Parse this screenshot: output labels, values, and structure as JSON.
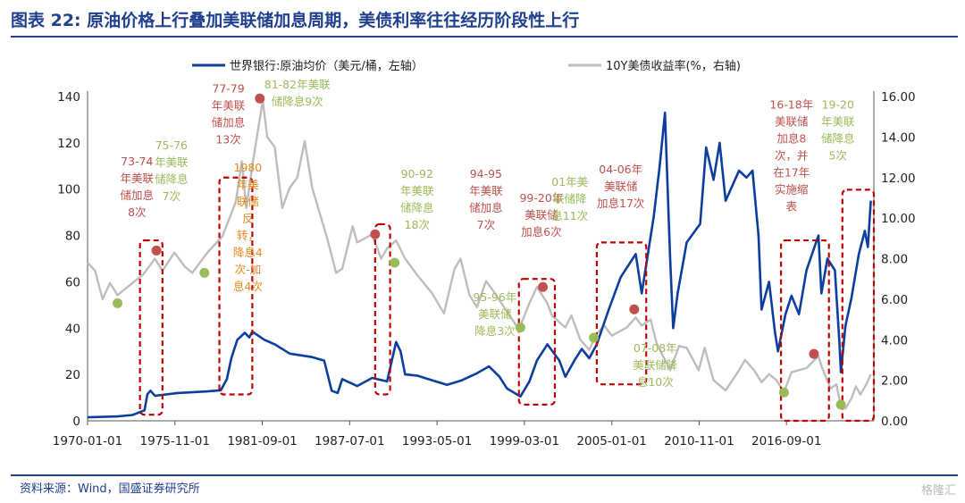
{
  "title": "图表 22: 原油价格上行叠加美联储加息周期，美债利率往往经历阶段性上行",
  "source": "资料来源：Wind，国盛证券研究所",
  "watermark": "格隆汇",
  "colors": {
    "oil": "#0b3e9e",
    "yield": "#bdbdbd",
    "hike": "#c0504d",
    "cut": "#9bbb59",
    "orange": "#e58a1e",
    "box": "#c00000",
    "title": "#1f3f8f"
  },
  "chart_data": {
    "type": "line",
    "title": "图表 22: 原油价格上行叠加美联储加息周期，美债利率往往经历阶段性上行",
    "x_ticks": [
      "1970-01-01",
      "1975-11-01",
      "1981-09-01",
      "1987-07-01",
      "1993-05-01",
      "1999-03-01",
      "2005-01-01",
      "2010-11-01",
      "2016-09-01"
    ],
    "x_range": [
      1970.0,
      2022.5
    ],
    "y_left": {
      "ticks": [
        "0",
        "20",
        "40",
        "60",
        "80",
        "100",
        "120",
        "140"
      ],
      "range": [
        0,
        140
      ]
    },
    "y_right": {
      "ticks": [
        "0.00",
        "2.00",
        "4.00",
        "6.00",
        "8.00",
        "10.00",
        "12.00",
        "14.00",
        "16.00"
      ],
      "range": [
        0,
        16
      ]
    },
    "legend_position": "top",
    "series": [
      {
        "name": "世界银行:原油均价（美元/桶，左轴）",
        "axis": "left",
        "color": "#0b3e9e",
        "points": [
          [
            1970.0,
            1.5
          ],
          [
            1972.0,
            1.9
          ],
          [
            1973.0,
            2.5
          ],
          [
            1973.8,
            4.5
          ],
          [
            1974.0,
            11.5
          ],
          [
            1974.2,
            13.0
          ],
          [
            1974.5,
            10.8
          ],
          [
            1976.0,
            12.0
          ],
          [
            1978.0,
            12.7
          ],
          [
            1978.9,
            13.2
          ],
          [
            1979.3,
            18.0
          ],
          [
            1979.6,
            27.0
          ],
          [
            1980.0,
            35.0
          ],
          [
            1980.5,
            38.0
          ],
          [
            1980.8,
            36.0
          ],
          [
            1981.0,
            38.5
          ],
          [
            1981.8,
            35.0
          ],
          [
            1982.5,
            33.0
          ],
          [
            1983.5,
            29.0
          ],
          [
            1985.0,
            27.5
          ],
          [
            1985.8,
            26.0
          ],
          [
            1986.3,
            13.0
          ],
          [
            1986.7,
            12.0
          ],
          [
            1987.0,
            18.0
          ],
          [
            1988.0,
            15.0
          ],
          [
            1989.0,
            18.5
          ],
          [
            1990.0,
            17.0
          ],
          [
            1990.6,
            34.0
          ],
          [
            1990.9,
            30.0
          ],
          [
            1991.2,
            20.0
          ],
          [
            1992.0,
            19.5
          ],
          [
            1993.0,
            17.5
          ],
          [
            1994.0,
            15.5
          ],
          [
            1995.0,
            17.5
          ],
          [
            1996.0,
            20.5
          ],
          [
            1996.8,
            23.5
          ],
          [
            1997.5,
            19.0
          ],
          [
            1998.0,
            14.0
          ],
          [
            1998.9,
            10.5
          ],
          [
            1999.5,
            17.0
          ],
          [
            2000.0,
            26.0
          ],
          [
            2000.7,
            33.0
          ],
          [
            2001.5,
            26.0
          ],
          [
            2001.9,
            19.0
          ],
          [
            2002.5,
            26.0
          ],
          [
            2003.0,
            31.0
          ],
          [
            2003.5,
            27.0
          ],
          [
            2004.0,
            33.0
          ],
          [
            2004.8,
            48.0
          ],
          [
            2005.6,
            62.0
          ],
          [
            2006.6,
            72.0
          ],
          [
            2007.0,
            55.0
          ],
          [
            2007.8,
            88.0
          ],
          [
            2008.2,
            110.0
          ],
          [
            2008.55,
            133.0
          ],
          [
            2008.9,
            70.0
          ],
          [
            2009.1,
            40.0
          ],
          [
            2009.4,
            55.0
          ],
          [
            2010.0,
            77.0
          ],
          [
            2010.9,
            85.0
          ],
          [
            2011.3,
            118.0
          ],
          [
            2011.8,
            104.0
          ],
          [
            2012.2,
            120.0
          ],
          [
            2012.6,
            95.0
          ],
          [
            2013.5,
            108.0
          ],
          [
            2014.0,
            105.0
          ],
          [
            2014.4,
            108.0
          ],
          [
            2014.8,
            80.0
          ],
          [
            2015.0,
            48.0
          ],
          [
            2015.5,
            60.0
          ],
          [
            2015.9,
            38.0
          ],
          [
            2016.1,
            30.0
          ],
          [
            2016.6,
            46.0
          ],
          [
            2017.0,
            54.0
          ],
          [
            2017.5,
            46.0
          ],
          [
            2018.0,
            65.0
          ],
          [
            2018.8,
            80.0
          ],
          [
            2019.0,
            55.0
          ],
          [
            2019.4,
            70.0
          ],
          [
            2019.9,
            65.0
          ],
          [
            2020.2,
            34.0
          ],
          [
            2020.3,
            21.0
          ],
          [
            2020.6,
            41.0
          ],
          [
            2021.0,
            53.0
          ],
          [
            2021.5,
            72.0
          ],
          [
            2021.9,
            82.0
          ],
          [
            2022.1,
            75.0
          ],
          [
            2022.3,
            95.0
          ]
        ]
      },
      {
        "name": "10Y美债收益率(%，右轴)",
        "axis": "right",
        "color": "#bdbdbd",
        "points": [
          [
            1970.0,
            7.8
          ],
          [
            1970.5,
            7.4
          ],
          [
            1971.0,
            6.0
          ],
          [
            1971.5,
            6.8
          ],
          [
            1972.0,
            6.2
          ],
          [
            1973.0,
            6.8
          ],
          [
            1973.7,
            7.2
          ],
          [
            1974.5,
            8.0
          ],
          [
            1975.0,
            7.4
          ],
          [
            1975.8,
            8.3
          ],
          [
            1976.5,
            7.6
          ],
          [
            1977.0,
            7.3
          ],
          [
            1978.0,
            8.3
          ],
          [
            1979.0,
            9.1
          ],
          [
            1979.9,
            10.8
          ],
          [
            1980.3,
            12.8
          ],
          [
            1980.6,
            10.5
          ],
          [
            1981.0,
            12.6
          ],
          [
            1981.7,
            15.8
          ],
          [
            1982.0,
            14.0
          ],
          [
            1982.5,
            13.5
          ],
          [
            1983.0,
            10.5
          ],
          [
            1983.5,
            11.5
          ],
          [
            1984.0,
            12.0
          ],
          [
            1984.5,
            13.8
          ],
          [
            1985.0,
            11.5
          ],
          [
            1986.0,
            9.0
          ],
          [
            1986.6,
            7.3
          ],
          [
            1987.0,
            7.5
          ],
          [
            1987.7,
            9.6
          ],
          [
            1988.0,
            8.8
          ],
          [
            1989.0,
            9.2
          ],
          [
            1989.6,
            8.0
          ],
          [
            1990.0,
            8.5
          ],
          [
            1990.6,
            8.9
          ],
          [
            1991.2,
            8.0
          ],
          [
            1992.0,
            7.2
          ],
          [
            1993.0,
            6.3
          ],
          [
            1993.8,
            5.3
          ],
          [
            1994.5,
            7.5
          ],
          [
            1994.9,
            8.0
          ],
          [
            1995.5,
            6.2
          ],
          [
            1996.0,
            5.6
          ],
          [
            1996.6,
            6.9
          ],
          [
            1997.0,
            6.5
          ],
          [
            1998.0,
            5.4
          ],
          [
            1998.8,
            4.5
          ],
          [
            1999.5,
            5.8
          ],
          [
            2000.0,
            6.6
          ],
          [
            2000.7,
            5.8
          ],
          [
            2001.0,
            5.2
          ],
          [
            2001.9,
            4.6
          ],
          [
            2002.3,
            5.2
          ],
          [
            2002.9,
            4.0
          ],
          [
            2003.5,
            3.5
          ],
          [
            2004.0,
            4.3
          ],
          [
            2004.5,
            4.7
          ],
          [
            2005.0,
            4.2
          ],
          [
            2006.0,
            4.6
          ],
          [
            2006.6,
            5.1
          ],
          [
            2007.0,
            4.7
          ],
          [
            2007.6,
            5.0
          ],
          [
            2008.0,
            3.8
          ],
          [
            2008.9,
            2.5
          ],
          [
            2009.5,
            3.7
          ],
          [
            2010.0,
            3.6
          ],
          [
            2010.8,
            2.5
          ],
          [
            2011.2,
            3.6
          ],
          [
            2011.8,
            2.0
          ],
          [
            2012.6,
            1.5
          ],
          [
            2013.5,
            2.5
          ],
          [
            2013.9,
            3.0
          ],
          [
            2014.5,
            2.5
          ],
          [
            2015.0,
            1.9
          ],
          [
            2015.5,
            2.3
          ],
          [
            2016.0,
            2.0
          ],
          [
            2016.5,
            1.4
          ],
          [
            2017.0,
            2.4
          ],
          [
            2018.0,
            2.6
          ],
          [
            2018.8,
            3.2
          ],
          [
            2019.0,
            2.7
          ],
          [
            2019.6,
            1.6
          ],
          [
            2020.0,
            1.8
          ],
          [
            2020.3,
            0.7
          ],
          [
            2020.6,
            0.6
          ],
          [
            2021.0,
            1.1
          ],
          [
            2021.3,
            1.7
          ],
          [
            2021.6,
            1.3
          ],
          [
            2022.0,
            1.8
          ],
          [
            2022.3,
            2.3
          ]
        ]
      }
    ],
    "markers": [
      {
        "type": "hike",
        "x": 1974.6,
        "y_right": 8.4
      },
      {
        "type": "hike",
        "x": 1981.5,
        "y_right": 15.9
      },
      {
        "type": "hike",
        "x": 1989.2,
        "y_right": 9.2
      },
      {
        "type": "hike",
        "x": 2000.4,
        "y_right": 6.6
      },
      {
        "type": "hike",
        "x": 2006.5,
        "y_right": 5.5
      },
      {
        "type": "hike",
        "x": 2018.5,
        "y_right": 3.3
      },
      {
        "type": "cut",
        "x": 1972.0,
        "y_right": 5.8
      },
      {
        "type": "cut",
        "x": 1977.8,
        "y_right": 7.3
      },
      {
        "type": "cut",
        "x": 1990.5,
        "y_right": 7.8
      },
      {
        "type": "cut",
        "x": 1998.9,
        "y_right": 4.6
      },
      {
        "type": "cut",
        "x": 2003.8,
        "y_right": 4.1
      },
      {
        "type": "cut",
        "x": 2016.5,
        "y_right": 1.4
      },
      {
        "type": "cut",
        "x": 2020.3,
        "y_right": 0.8
      }
    ],
    "boxes": [
      {
        "x0": 1973.5,
        "x1": 1975.0,
        "y0": 0.3,
        "y1": 8.9
      },
      {
        "x0": 1978.8,
        "x1": 1981.0,
        "y0": 1.3,
        "y1": 12.0
      },
      {
        "x0": 1989.2,
        "x1": 1990.2,
        "y0": 1.3,
        "y1": 9.7
      },
      {
        "x0": 1998.8,
        "x1": 2001.2,
        "y0": 0.8,
        "y1": 7.0
      },
      {
        "x0": 2004.0,
        "x1": 2007.3,
        "y0": 1.8,
        "y1": 8.8
      },
      {
        "x0": 2016.3,
        "x1": 2019.5,
        "y0": 0.0,
        "y1": 8.9
      },
      {
        "x0": 2020.4,
        "x1": 2022.5,
        "y0": 0.0,
        "y1": 11.4
      }
    ],
    "annotations": [
      {
        "color": "hike",
        "x": 1973.3,
        "y_right": 12.6,
        "lines": [
          "73-74",
          "年美联",
          "储加息",
          "8次"
        ]
      },
      {
        "color": "cut",
        "x": 1975.6,
        "y_right": 13.4,
        "lines": [
          "75-76",
          "年美联",
          "储降息",
          "7次"
        ]
      },
      {
        "color": "hike",
        "x": 1979.4,
        "y_right": 16.2,
        "lines": [
          "77-79",
          "年美联",
          "储加息",
          "13次"
        ]
      },
      {
        "color": "orange",
        "x": 1980.7,
        "y_right": 12.3,
        "lines": [
          "1980",
          "年美",
          "联储",
          "反",
          "转，",
          "降息4",
          "次-加",
          "息4次"
        ]
      },
      {
        "color": "cut",
        "x": 1984.0,
        "y_right": 16.4,
        "lines": [
          "81-82年美联",
          "储降息9次"
        ]
      },
      {
        "color": "cut",
        "x": 1992.0,
        "y_right": 12.0,
        "lines": [
          "90-92",
          "年美联",
          "储降息",
          "18次"
        ]
      },
      {
        "color": "hike",
        "x": 1996.6,
        "y_right": 12.0,
        "lines": [
          "94-95",
          "年美联",
          "储加息",
          "7次"
        ]
      },
      {
        "color": "hike",
        "x": 2000.3,
        "y_right": 10.8,
        "lines": [
          "99-20年",
          "美联储",
          "加息6次"
        ]
      },
      {
        "color": "cut",
        "x": 2002.2,
        "y_right": 11.6,
        "lines": [
          "01年美",
          "联储降",
          "息11次"
        ]
      },
      {
        "color": "hike",
        "x": 2005.6,
        "y_right": 12.2,
        "lines": [
          "04-06年",
          "美联储",
          "加息17次"
        ]
      },
      {
        "color": "cut",
        "x": 1997.2,
        "y_right": 5.9,
        "lines": [
          "95-96年",
          "美联储",
          "降息3次"
        ]
      },
      {
        "color": "cut",
        "x": 2007.9,
        "y_right": 3.4,
        "lines": [
          "07-08年",
          "美联储降",
          "息10次"
        ]
      },
      {
        "color": "hike",
        "x": 2017.0,
        "y_right": 15.4,
        "lines": [
          "16-18年",
          "美联储",
          "加息8",
          "次，并",
          "在17年",
          "实施缩",
          "表"
        ]
      },
      {
        "color": "cut",
        "x": 2020.1,
        "y_right": 15.4,
        "lines": [
          "19-20",
          "年美联",
          "储降息",
          "5次"
        ]
      }
    ]
  }
}
